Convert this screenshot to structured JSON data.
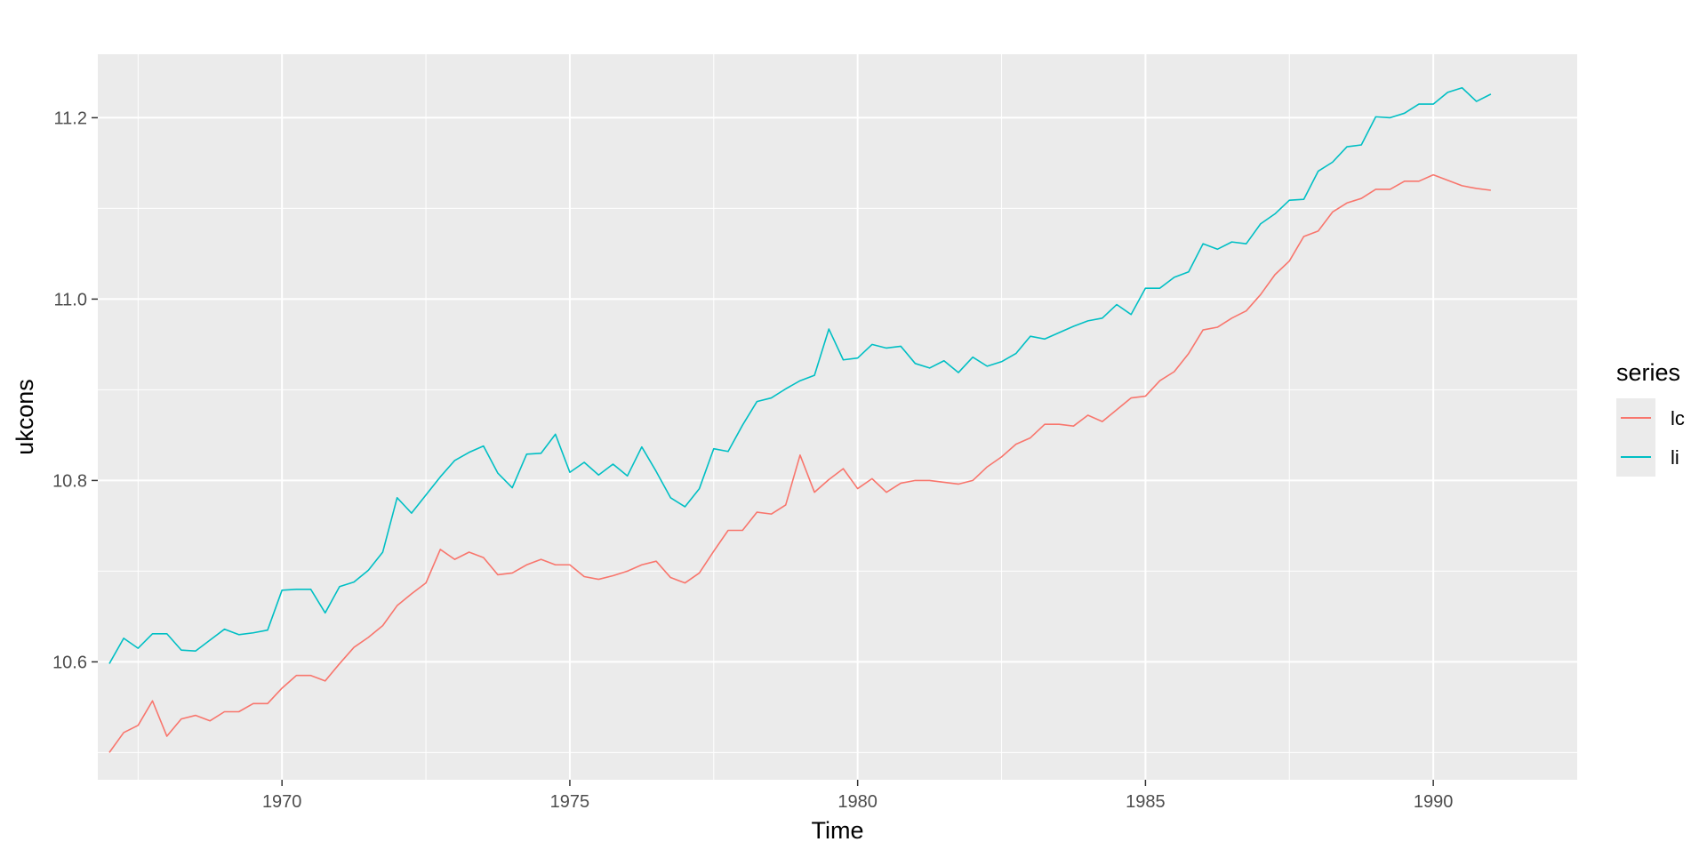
{
  "chart_data": {
    "type": "line",
    "xlabel": "Time",
    "ylabel": "ukcons",
    "xlim": [
      1966.8,
      1992.5
    ],
    "ylim": [
      10.47,
      11.27
    ],
    "x_ticks": [
      1970,
      1975,
      1980,
      1985,
      1990
    ],
    "x_tick_labels": [
      "1970",
      "1975",
      "1980",
      "1985",
      "1990"
    ],
    "y_ticks": [
      10.6,
      10.8,
      11.0,
      11.2
    ],
    "y_tick_labels": [
      "10.6",
      "10.8",
      "11.0",
      "11.2"
    ],
    "grid": true,
    "legend": {
      "title": "series",
      "position": "right"
    },
    "colors": {
      "lc": "#F8766D",
      "li": "#00BFC4",
      "panel": "#EBEBEB",
      "grid": "#FFFFFF"
    },
    "x_start": 1967.0,
    "x_step": 0.25,
    "series": [
      {
        "name": "lc",
        "color": "#F8766D",
        "values": [
          10.5,
          10.522,
          10.53,
          10.557,
          10.518,
          10.537,
          10.541,
          10.535,
          10.545,
          10.545,
          10.554,
          10.554,
          10.571,
          10.585,
          10.585,
          10.579,
          10.598,
          10.616,
          10.627,
          10.64,
          10.662,
          10.675,
          10.687,
          10.724,
          10.713,
          10.721,
          10.715,
          10.696,
          10.698,
          10.707,
          10.713,
          10.707,
          10.707,
          10.694,
          10.691,
          10.695,
          10.7,
          10.707,
          10.711,
          10.693,
          10.687,
          10.698,
          10.722,
          10.745,
          10.745,
          10.765,
          10.763,
          10.773,
          10.828,
          10.787,
          10.801,
          10.813,
          10.791,
          10.802,
          10.787,
          10.797,
          10.8,
          10.8,
          10.798,
          10.796,
          10.8,
          10.815,
          10.826,
          10.84,
          10.847,
          10.862,
          10.862,
          10.86,
          10.872,
          10.865,
          10.878,
          10.891,
          10.893,
          10.91,
          10.92,
          10.94,
          10.966,
          10.969,
          10.979,
          10.987,
          11.005,
          11.027,
          11.042,
          11.069,
          11.075,
          11.096,
          11.106,
          11.111,
          11.121,
          11.121,
          11.13,
          11.13,
          11.137,
          11.131,
          11.125,
          11.122,
          11.12
        ]
      },
      {
        "name": "li",
        "color": "#00BFC4",
        "values": [
          10.598,
          10.626,
          10.615,
          10.631,
          10.631,
          10.613,
          10.612,
          10.624,
          10.636,
          10.63,
          10.632,
          10.635,
          10.679,
          10.68,
          10.68,
          10.654,
          10.683,
          10.688,
          10.701,
          10.721,
          10.781,
          10.764,
          10.784,
          10.804,
          10.822,
          10.831,
          10.838,
          10.808,
          10.792,
          10.829,
          10.83,
          10.851,
          10.809,
          10.82,
          10.806,
          10.818,
          10.805,
          10.837,
          10.81,
          10.781,
          10.771,
          10.791,
          10.835,
          10.832,
          10.861,
          10.887,
          10.891,
          10.901,
          10.91,
          10.916,
          10.967,
          10.933,
          10.935,
          10.95,
          10.946,
          10.948,
          10.929,
          10.924,
          10.932,
          10.919,
          10.936,
          10.926,
          10.931,
          10.94,
          10.959,
          10.956,
          10.963,
          10.97,
          10.976,
          10.979,
          10.994,
          10.983,
          11.012,
          11.012,
          11.024,
          11.03,
          11.061,
          11.055,
          11.063,
          11.061,
          11.083,
          11.094,
          11.109,
          11.11,
          11.141,
          11.151,
          11.168,
          11.17,
          11.201,
          11.2,
          11.205,
          11.215,
          11.215,
          11.228,
          11.233,
          11.218,
          11.226
        ]
      }
    ]
  }
}
